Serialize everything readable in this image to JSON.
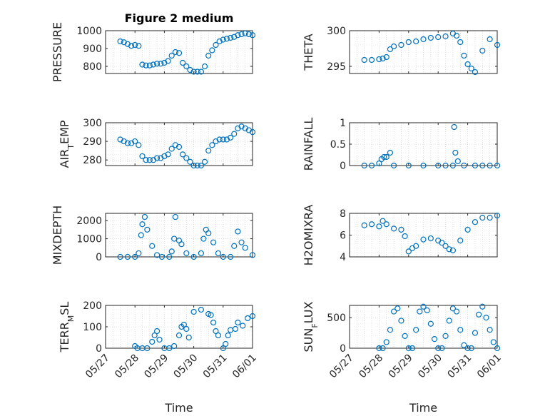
{
  "window": {
    "title": "Figure 2 medium"
  },
  "colors": {
    "marker": "#0072BD",
    "axis": "#262626",
    "grid": "#c8c8c8"
  },
  "chart_data": [
    {
      "type": "scatter",
      "title": "Figure 2 medium",
      "ylabel": "PRESSURE",
      "ylabel_sub": null,
      "xlabel": "",
      "ylim": [
        760,
        1000
      ],
      "yticks": [
        "800",
        "900",
        "1000"
      ],
      "ytick_values": [
        800,
        900,
        1000
      ],
      "xticks": [
        "05/27",
        "05/28",
        "05/29",
        "05/30",
        "05/31",
        "06/01"
      ],
      "xtick_labels_visible": false,
      "grid": true,
      "x": [
        "05/27 12:00",
        "05/27 15:00",
        "05/27 18:00",
        "05/27 21:00",
        "05/28 00:00",
        "05/28 03:00",
        "05/28 06:00",
        "05/28 09:00",
        "05/28 12:00",
        "05/28 15:00",
        "05/28 18:00",
        "05/28 21:00",
        "05/29 00:00",
        "05/29 03:00",
        "05/29 06:00",
        "05/29 09:00",
        "05/29 12:00",
        "05/29 15:00",
        "05/29 18:00",
        "05/29 21:00",
        "05/30 00:00",
        "05/30 03:00",
        "05/30 06:00",
        "05/30 09:00",
        "05/30 12:00",
        "05/30 15:00",
        "05/30 18:00",
        "05/30 21:00",
        "05/31 00:00",
        "05/31 03:00",
        "05/31 06:00",
        "05/31 09:00",
        "05/31 12:00",
        "05/31 15:00",
        "05/31 18:00",
        "05/31 21:00",
        "06/01 00:00"
      ],
      "y": [
        940,
        935,
        925,
        915,
        920,
        915,
        810,
        805,
        805,
        810,
        815,
        815,
        820,
        830,
        860,
        880,
        875,
        820,
        800,
        780,
        770,
        770,
        770,
        800,
        860,
        890,
        920,
        940,
        950,
        955,
        960,
        965,
        975,
        980,
        985,
        980,
        975
      ]
    },
    {
      "type": "scatter",
      "ylabel": "THETA",
      "ylabel_sub": null,
      "xlabel": "",
      "ylim": [
        294,
        300
      ],
      "yticks": [
        "295",
        "300"
      ],
      "ytick_values": [
        295,
        300
      ],
      "xticks": [
        "05/27",
        "05/28",
        "05/29",
        "05/30",
        "05/31",
        "06/01"
      ],
      "xtick_labels_visible": false,
      "grid": true,
      "x": [
        "05/27 12:00",
        "05/27 18:00",
        "05/28 00:00",
        "05/28 03:00",
        "05/28 06:00",
        "05/28 09:00",
        "05/28 12:00",
        "05/28 18:00",
        "05/29 00:00",
        "05/29 06:00",
        "05/29 12:00",
        "05/29 18:00",
        "05/30 00:00",
        "05/30 06:00",
        "05/30 12:00",
        "05/30 15:00",
        "05/30 18:00",
        "05/30 21:00",
        "05/31 00:00",
        "05/31 03:00",
        "05/31 06:00",
        "05/31 12:00",
        "05/31 18:00",
        "06/01 00:00"
      ],
      "y": [
        295.9,
        295.9,
        296.0,
        296.1,
        296.3,
        297.4,
        297.8,
        298.0,
        298.4,
        298.5,
        298.8,
        299.0,
        299.1,
        299.2,
        299.6,
        299.3,
        298.4,
        296.5,
        295.3,
        294.7,
        294.2,
        297.2,
        298.8,
        298.0
      ]
    },
    {
      "type": "scatter",
      "ylabel": "AIR",
      "ylabel_sub": "T",
      "ylabel_tail": "EMP",
      "xlabel": "",
      "ylim": [
        277,
        300
      ],
      "yticks": [
        "280",
        "290",
        "300"
      ],
      "ytick_values": [
        280,
        290,
        300
      ],
      "xticks": [
        "05/27",
        "05/28",
        "05/29",
        "05/30",
        "05/31",
        "06/01"
      ],
      "xtick_labels_visible": false,
      "grid": true,
      "x": [
        "05/27 12:00",
        "05/27 15:00",
        "05/27 18:00",
        "05/27 21:00",
        "05/28 00:00",
        "05/28 03:00",
        "05/28 06:00",
        "05/28 09:00",
        "05/28 12:00",
        "05/28 15:00",
        "05/28 18:00",
        "05/28 21:00",
        "05/29 00:00",
        "05/29 03:00",
        "05/29 06:00",
        "05/29 09:00",
        "05/29 12:00",
        "05/29 15:00",
        "05/29 18:00",
        "05/29 21:00",
        "05/30 00:00",
        "05/30 03:00",
        "05/30 06:00",
        "05/30 09:00",
        "05/30 12:00",
        "05/30 15:00",
        "05/30 18:00",
        "05/30 21:00",
        "05/31 00:00",
        "05/31 03:00",
        "05/31 06:00",
        "05/31 09:00",
        "05/31 12:00",
        "05/31 15:00",
        "05/31 18:00",
        "05/31 21:00",
        "06/01 00:00"
      ],
      "y": [
        291,
        290,
        289,
        289,
        290,
        288,
        282,
        280,
        280,
        280,
        281,
        281,
        282,
        283,
        286,
        288,
        287,
        283,
        281,
        279,
        277,
        277,
        277,
        279,
        285,
        288,
        290,
        291,
        291,
        291,
        292,
        294,
        297,
        298,
        297,
        296,
        295
      ]
    },
    {
      "type": "scatter",
      "ylabel": "RAINFALL",
      "ylabel_sub": null,
      "xlabel": "",
      "ylim": [
        0,
        1
      ],
      "yticks": [
        "0",
        "0.5",
        "1"
      ],
      "ytick_values": [
        0,
        0.5,
        1
      ],
      "xticks": [
        "05/27",
        "05/28",
        "05/29",
        "05/30",
        "05/31",
        "06/01"
      ],
      "xtick_labels_visible": false,
      "grid": true,
      "x": [
        "05/27 12:00",
        "05/27 18:00",
        "05/28 00:00",
        "05/28 02:00",
        "05/28 04:00",
        "05/28 06:00",
        "05/28 09:00",
        "05/28 12:00",
        "05/29 00:00",
        "05/29 12:00",
        "05/30 00:00",
        "05/30 06:00",
        "05/30 12:00",
        "05/30 13:00",
        "05/30 14:00",
        "05/30 16:00",
        "05/30 21:00",
        "05/31 06:00",
        "05/31 12:00",
        "05/31 18:00",
        "06/01 00:00"
      ],
      "y": [
        0,
        0,
        0.05,
        0.15,
        0.2,
        0.2,
        0.3,
        0,
        0,
        0,
        0,
        0,
        0,
        0.9,
        0.3,
        0.1,
        0,
        0,
        0,
        0,
        0
      ]
    },
    {
      "type": "scatter",
      "ylabel": "MIXDEPTH",
      "ylabel_sub": null,
      "xlabel": "",
      "ylim": [
        0,
        2400
      ],
      "yticks": [
        "0",
        "1000",
        "2000"
      ],
      "ytick_values": [
        0,
        1000,
        2000
      ],
      "xticks": [
        "05/27",
        "05/28",
        "05/29",
        "05/30",
        "05/31",
        "06/01"
      ],
      "xtick_labels_visible": false,
      "grid": true,
      "x": [
        "05/27 12:00",
        "05/27 18:00",
        "05/28 00:00",
        "05/28 03:00",
        "05/28 05:00",
        "05/28 06:00",
        "05/28 08:00",
        "05/28 10:00",
        "05/28 14:00",
        "05/28 18:00",
        "05/28 22:00",
        "05/29 04:00",
        "05/29 06:00",
        "05/29 08:00",
        "05/29 09:00",
        "05/29 12:00",
        "05/29 14:00",
        "05/29 18:00",
        "05/30 00:00",
        "05/30 06:00",
        "05/30 08:00",
        "05/30 10:00",
        "05/30 12:00",
        "05/30 16:00",
        "05/30 20:00",
        "05/31 00:00",
        "05/31 06:00",
        "05/31 09:00",
        "05/31 12:00",
        "05/31 15:00",
        "05/31 18:00",
        "06/01 00:00"
      ],
      "y": [
        0,
        0,
        0,
        200,
        1200,
        1800,
        2200,
        1500,
        600,
        100,
        0,
        0,
        300,
        1000,
        2200,
        900,
        700,
        200,
        0,
        200,
        1000,
        1500,
        1300,
        800,
        200,
        0,
        0,
        600,
        1400,
        800,
        500,
        100
      ]
    },
    {
      "type": "scatter",
      "ylabel": "H2OMIXRA",
      "ylabel_sub": null,
      "xlabel": "",
      "ylim": [
        4,
        8
      ],
      "yticks": [
        "4",
        "6",
        "8"
      ],
      "ytick_values": [
        4,
        6,
        8
      ],
      "xticks": [
        "05/27",
        "05/28",
        "05/29",
        "05/30",
        "05/31",
        "06/01"
      ],
      "xtick_labels_visible": false,
      "grid": true,
      "x": [
        "05/27 12:00",
        "05/27 18:00",
        "05/28 00:00",
        "05/28 03:00",
        "05/28 06:00",
        "05/28 12:00",
        "05/28 18:00",
        "05/28 21:00",
        "05/29 00:00",
        "05/29 03:00",
        "05/29 06:00",
        "05/29 12:00",
        "05/29 18:00",
        "05/30 00:00",
        "05/30 03:00",
        "05/30 06:00",
        "05/30 09:00",
        "05/30 12:00",
        "05/30 18:00",
        "05/31 00:00",
        "05/31 06:00",
        "05/31 12:00",
        "05/31 18:00",
        "06/01 00:00"
      ],
      "y": [
        6.9,
        7.0,
        6.8,
        7.3,
        7.0,
        6.6,
        6.5,
        5.9,
        4.5,
        4.8,
        5.0,
        5.6,
        5.7,
        5.5,
        5.3,
        5.0,
        4.7,
        4.6,
        5.5,
        6.5,
        7.2,
        7.6,
        7.6,
        7.8
      ]
    },
    {
      "type": "scatter",
      "ylabel": "TERR",
      "ylabel_sub": "M",
      "ylabel_tail": "SL",
      "xlabel": "Time",
      "ylim": [
        0,
        200
      ],
      "yticks": [
        "0",
        "100",
        "200"
      ],
      "ytick_values": [
        0,
        100,
        200
      ],
      "xticks": [
        "05/27",
        "05/28",
        "05/29",
        "05/30",
        "05/31",
        "06/01"
      ],
      "xtick_labels_visible": true,
      "grid": true,
      "x": [
        "05/28 00:00",
        "05/28 02:00",
        "05/28 06:00",
        "05/28 10:00",
        "05/28 14:00",
        "05/28 16:00",
        "05/28 18:00",
        "05/28 20:00",
        "05/29 00:00",
        "05/29 04:00",
        "05/29 08:00",
        "05/29 12:00",
        "05/29 14:00",
        "05/29 16:00",
        "05/29 18:00",
        "05/29 20:00",
        "05/30 00:00",
        "05/30 06:00",
        "05/30 12:00",
        "05/30 14:00",
        "05/30 16:00",
        "05/30 18:00",
        "05/30 20:00",
        "05/31 00:00",
        "05/31 02:00",
        "05/31 04:00",
        "05/31 06:00",
        "05/31 10:00",
        "05/31 12:00",
        "05/31 16:00",
        "05/31 20:00",
        "06/01 00:00"
      ],
      "y": [
        10,
        0,
        0,
        0,
        30,
        60,
        80,
        40,
        0,
        0,
        10,
        60,
        100,
        110,
        90,
        50,
        170,
        180,
        160,
        155,
        120,
        80,
        60,
        0,
        20,
        60,
        85,
        90,
        120,
        105,
        140,
        150
      ]
    },
    {
      "type": "scatter",
      "ylabel": "SUN",
      "ylabel_sub": "F",
      "ylabel_tail": "LUX",
      "xlabel": "Time",
      "ylim": [
        0,
        700
      ],
      "yticks": [
        "0",
        "500"
      ],
      "ytick_values": [
        0,
        500
      ],
      "xticks": [
        "05/27",
        "05/28",
        "05/29",
        "05/30",
        "05/31",
        "06/01"
      ],
      "xtick_labels_visible": true,
      "grid": true,
      "x": [
        "05/28 00:00",
        "05/28 03:00",
        "05/28 06:00",
        "05/28 09:00",
        "05/28 12:00",
        "05/28 15:00",
        "05/28 18:00",
        "05/28 21:00",
        "05/29 00:00",
        "05/29 03:00",
        "05/29 06:00",
        "05/29 09:00",
        "05/29 12:00",
        "05/29 15:00",
        "05/29 18:00",
        "05/29 21:00",
        "05/30 00:00",
        "05/30 03:00",
        "05/30 06:00",
        "05/30 09:00",
        "05/30 12:00",
        "05/30 15:00",
        "05/30 18:00",
        "05/30 21:00",
        "05/31 00:00",
        "05/31 03:00",
        "05/31 06:00",
        "05/31 09:00",
        "05/31 12:00",
        "05/31 15:00",
        "05/31 18:00",
        "05/31 21:00",
        "06/01 00:00"
      ],
      "y": [
        0,
        0,
        100,
        300,
        600,
        650,
        450,
        200,
        0,
        0,
        300,
        600,
        680,
        620,
        400,
        150,
        0,
        0,
        200,
        450,
        650,
        600,
        300,
        50,
        0,
        0,
        250,
        550,
        680,
        500,
        300,
        100,
        0
      ]
    }
  ]
}
